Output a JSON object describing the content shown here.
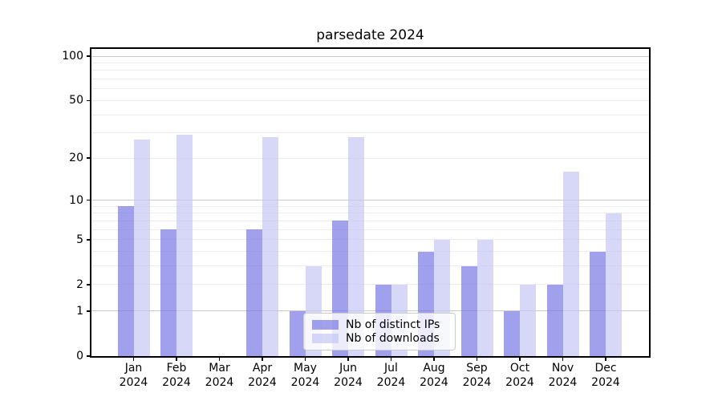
{
  "chart_data": {
    "type": "bar",
    "title": "parsedate 2024",
    "categories": [
      "Jan",
      "Feb",
      "Mar",
      "Apr",
      "May",
      "Jun",
      "Jul",
      "Aug",
      "Sep",
      "Oct",
      "Nov",
      "Dec"
    ],
    "x_year_label": "2024",
    "series": [
      {
        "name": "Nb of distinct IPs",
        "color": "rgba(119,119,230,0.7)",
        "color_on_white": "#a0a0ee",
        "values": [
          9,
          6,
          0,
          6,
          1,
          7,
          2,
          4,
          3,
          1,
          2,
          4
        ]
      },
      {
        "name": "Nb of downloads",
        "color": "rgba(198,198,245,0.7)",
        "color_on_white": "#d7d7f8",
        "values": [
          27,
          29,
          0,
          28,
          3,
          28,
          2,
          5,
          5,
          2,
          16,
          8
        ]
      }
    ],
    "yscale": "log1p",
    "ytick_labels": [
      "0",
      "1",
      "2",
      "5",
      "10",
      "20",
      "50",
      "100"
    ],
    "ytick_values": [
      0,
      1,
      2,
      5,
      10,
      20,
      50,
      100
    ],
    "ylim": [
      0,
      112
    ],
    "grid": true,
    "gridline_minor_values": [
      2,
      3,
      4,
      5,
      6,
      7,
      8,
      9,
      20,
      30,
      40,
      50,
      60,
      70,
      80,
      90
    ],
    "gridline_major_values": [
      1,
      10,
      100
    ],
    "legend_position": "lower-center"
  }
}
